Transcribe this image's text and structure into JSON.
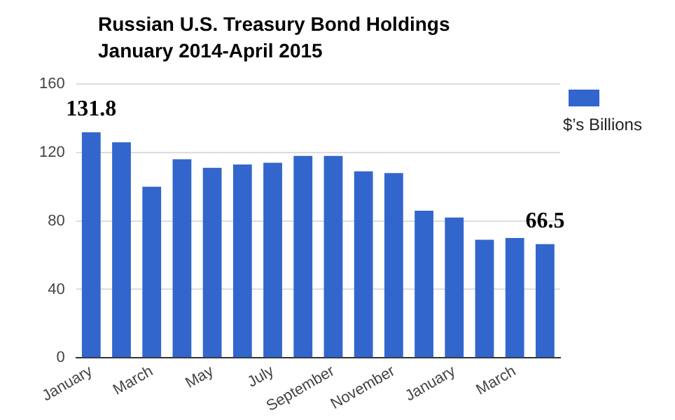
{
  "chart_data": {
    "type": "bar",
    "title": "Russian U.S. Treasury Bond Holdings January 2014-April 2015",
    "categories": [
      "January",
      null,
      "March",
      null,
      "May",
      null,
      "July",
      null,
      "September",
      null,
      "November",
      null,
      "January",
      null,
      "March",
      null
    ],
    "series": [
      {
        "name": "$’s Billions",
        "color": "#3366cc",
        "values": [
          131.8,
          126,
          100,
          116,
          111,
          113,
          114,
          118,
          118,
          109,
          108,
          86,
          82,
          69,
          70,
          66.5
        ],
        "value_labels": [
          "131.8",
          null,
          null,
          null,
          null,
          null,
          null,
          null,
          null,
          null,
          null,
          null,
          null,
          null,
          null,
          "66.5"
        ]
      }
    ],
    "ylim": [
      0,
      160
    ],
    "yticks": [
      0,
      40,
      80,
      120,
      160
    ],
    "grid": "y",
    "legend": "top right"
  }
}
